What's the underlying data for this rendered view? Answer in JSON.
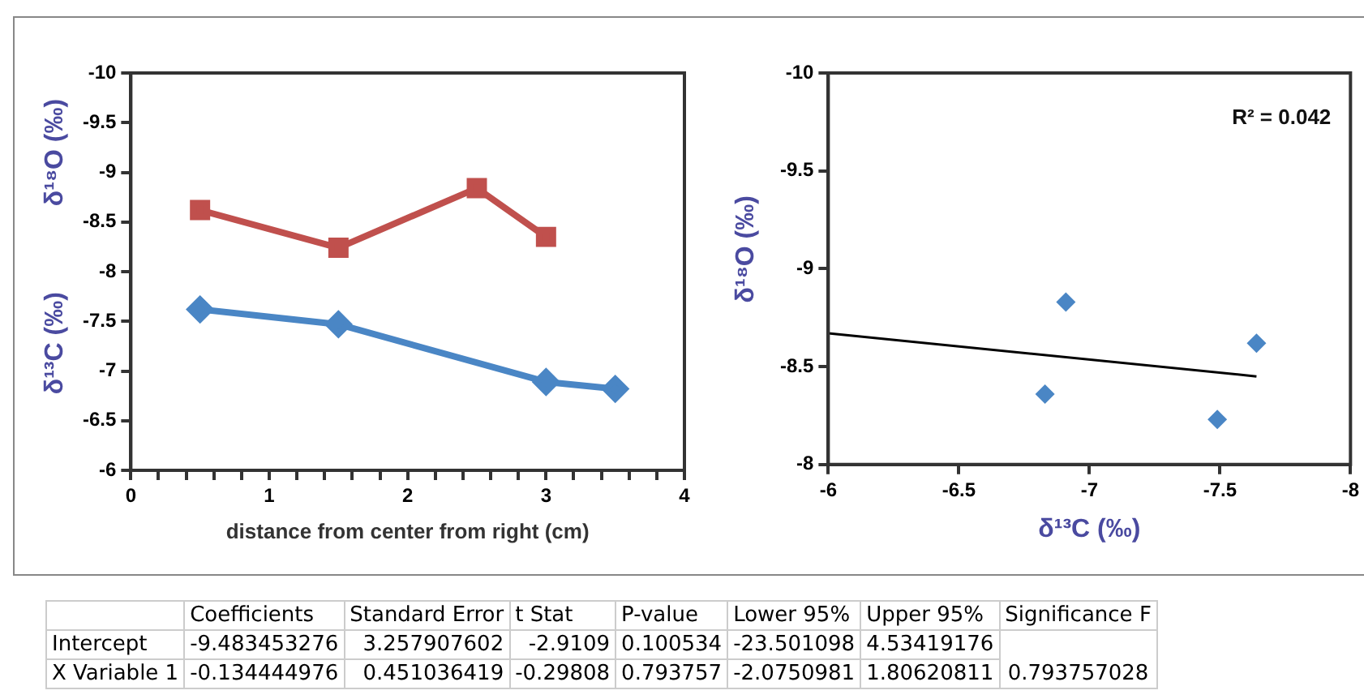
{
  "chart_data": [
    {
      "type": "line",
      "xlabel": "distance from center from right (cm)",
      "ylabel": "δ¹⁸O (‰)",
      "annotations": [
        "δ¹³C (‰)"
      ],
      "xlim": [
        0,
        4
      ],
      "xticks": [
        0,
        {
          "value": 0.2,
          "label": null
        },
        {
          "value": 0.4,
          "label": null
        },
        {
          "value": 0.6,
          "label": null
        },
        {
          "value": 0.8,
          "label": null
        },
        1,
        {
          "value": 1.2,
          "label": null
        },
        {
          "value": 1.4,
          "label": null
        },
        {
          "value": 1.6,
          "label": null
        },
        {
          "value": 1.8,
          "label": null
        },
        2,
        {
          "value": 2.2,
          "label": null
        },
        {
          "value": 2.4,
          "label": null
        },
        {
          "value": 2.6,
          "label": null
        },
        {
          "value": 2.8,
          "label": null
        },
        3,
        {
          "value": 3.2,
          "label": null
        },
        {
          "value": 3.4,
          "label": null
        },
        {
          "value": 3.6,
          "label": null
        },
        {
          "value": 3.8,
          "label": null
        },
        4
      ],
      "ylim": [
        -6,
        -10
      ],
      "yticks": [
        -10,
        -9.5,
        -9,
        -8.5,
        -8,
        -7.5,
        -7,
        -6.5,
        -6
      ],
      "grid": false,
      "legend": false,
      "series": [
        {
          "color": "#c0504d",
          "marker": "square",
          "x": [
            0.5,
            1.5,
            2.5,
            3
          ],
          "values": [
            -8.62,
            -8.24,
            -8.84,
            -8.35
          ]
        },
        {
          "color": "#4a86c5",
          "marker": "diamond",
          "x": [
            0.5,
            1.5,
            3,
            3.5
          ],
          "values": [
            -7.62,
            -7.47,
            -6.89,
            -6.82
          ]
        }
      ]
    },
    {
      "type": "scatter",
      "xlabel": "δ¹³C (‰)",
      "ylabel": "δ¹⁸O (‰)",
      "annotations": [
        "R² = 0.042"
      ],
      "xlim": [
        -6,
        -8
      ],
      "xticks": [
        -6,
        -6.5,
        -7,
        -7.5,
        -8
      ],
      "ylim": [
        -8,
        -10
      ],
      "yticks": [
        -10,
        -9.5,
        -9,
        -8.5,
        -8
      ],
      "grid": false,
      "legend": false,
      "series": [
        {
          "color": "#4a86c5",
          "marker": "diamond",
          "x": [
            -6.83,
            -6.91,
            -7.49,
            -7.64
          ],
          "values": [
            -8.36,
            -8.83,
            -8.23,
            -8.62
          ]
        },
        {
          "type": "line",
          "color": "#000000",
          "marker": "none",
          "x": [
            -6,
            -7.64
          ],
          "values": [
            -8.67,
            -8.45
          ]
        }
      ]
    },
    {
      "type": "other",
      "categories": [
        "Coefficients",
        "Standard Error",
        "t Stat",
        "P-value",
        "Lower 95%",
        "Upper 95%",
        "Significance F"
      ],
      "y_categories": [
        "Intercept",
        "X Variable 1"
      ],
      "cell_labels": [
        [
          "-9.483453276",
          "3.257907602",
          "-2.9109",
          "0.100534",
          "-23.501098",
          "4.53419176",
          null
        ],
        [
          "-0.134444976",
          "0.451036419",
          "-0.29808",
          "0.793757",
          "-2.0750981",
          "1.80620811",
          "0.793757028"
        ]
      ]
    }
  ]
}
